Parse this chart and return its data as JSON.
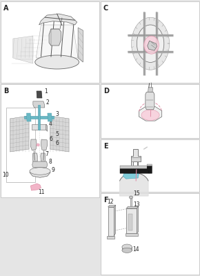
{
  "bg_color": "#e5e5e5",
  "white": "#ffffff",
  "line_color": "#666666",
  "dark_line": "#444444",
  "light_gray": "#d0d0d0",
  "mid_gray": "#999999",
  "dark_gray": "#555555",
  "pink": "#f2b5c8",
  "pink_dark": "#e090a8",
  "pink_light": "#f8d0dc",
  "blue": "#80ccd8",
  "blue_dark": "#60b0c0",
  "teal": "#6ab8c4",
  "label_color": "#222222",
  "fs": 5.5,
  "sfs": 7,
  "panels": {
    "A": [
      0.005,
      0.7,
      0.49,
      0.295
    ],
    "B": [
      0.005,
      0.285,
      0.49,
      0.41
    ],
    "C": [
      0.505,
      0.7,
      0.49,
      0.295
    ],
    "D": [
      0.505,
      0.5,
      0.49,
      0.195
    ],
    "E": [
      0.505,
      0.305,
      0.49,
      0.19
    ],
    "F": [
      0.505,
      0.005,
      0.49,
      0.295
    ]
  }
}
